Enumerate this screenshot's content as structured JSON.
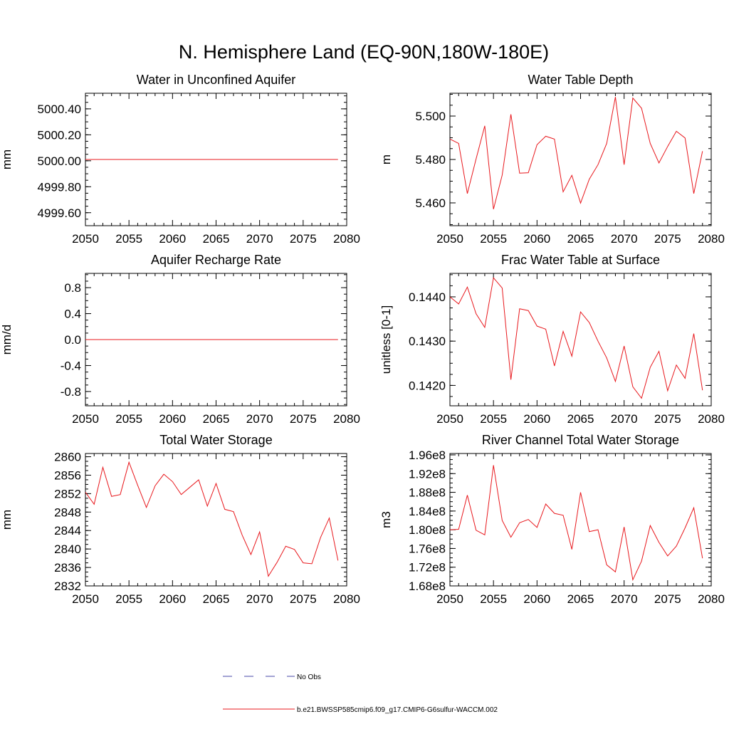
{
  "figure": {
    "title": "N. Hemisphere Land (EQ-90N,180W-180E)"
  },
  "colors": {
    "series": "#e8181d",
    "obs": "#4a4aa8",
    "axis": "#000000"
  },
  "legend": {
    "items": [
      {
        "label": "No Obs",
        "style": "dashed",
        "color": "#4a4aa8"
      },
      {
        "label": "b.e21.BWSSP585cmip6.f09_g17.CMIP6-G6sulfur-WACCM.002",
        "style": "solid",
        "color": "#e8181d"
      }
    ]
  },
  "chart_data": [
    {
      "type": "line",
      "title": "Water in Unconfined Aquifer",
      "ylabel": "mm",
      "xlim": [
        2050,
        2080
      ],
      "ylim": [
        4999.5,
        5000.52
      ],
      "xticks": [
        2050,
        2055,
        2060,
        2065,
        2070,
        2075,
        2080
      ],
      "xtick_labels": [
        "2050",
        "2055",
        "2060",
        "2065",
        "2070",
        "2075",
        "2080"
      ],
      "yticks": [
        4999.6,
        4999.8,
        5000.0,
        5000.2,
        5000.4
      ],
      "ytick_labels": [
        "4999.60",
        "4999.80",
        "5000.00",
        "5000.20",
        "5000.40"
      ],
      "minor_step": 0.05,
      "x": [
        2050,
        2051,
        2052,
        2053,
        2054,
        2055,
        2056,
        2057,
        2058,
        2059,
        2060,
        2061,
        2062,
        2063,
        2064,
        2065,
        2066,
        2067,
        2068,
        2069,
        2070,
        2071,
        2072,
        2073,
        2074,
        2075,
        2076,
        2077,
        2078,
        2079
      ],
      "y": [
        5000.01,
        5000.01,
        5000.01,
        5000.01,
        5000.01,
        5000.01,
        5000.01,
        5000.01,
        5000.01,
        5000.01,
        5000.01,
        5000.01,
        5000.01,
        5000.01,
        5000.01,
        5000.01,
        5000.01,
        5000.01,
        5000.01,
        5000.01,
        5000.01,
        5000.01,
        5000.01,
        5000.01,
        5000.01,
        5000.01,
        5000.01,
        5000.01,
        5000.01,
        5000.01
      ]
    },
    {
      "type": "line",
      "title": "Water Table Depth",
      "ylabel": "m",
      "xlim": [
        2050,
        2080
      ],
      "ylim": [
        5.4495,
        5.5105
      ],
      "xticks": [
        2050,
        2055,
        2060,
        2065,
        2070,
        2075,
        2080
      ],
      "xtick_labels": [
        "2050",
        "2055",
        "2060",
        "2065",
        "2070",
        "2075",
        "2080"
      ],
      "yticks": [
        5.46,
        5.48,
        5.5
      ],
      "ytick_labels": [
        "5.460",
        "5.480",
        "5.500"
      ],
      "minor_step": 0.005,
      "x": [
        2050,
        2051,
        2052,
        2053,
        2054,
        2055,
        2056,
        2057,
        2058,
        2059,
        2060,
        2061,
        2062,
        2063,
        2064,
        2065,
        2066,
        2067,
        2068,
        2069,
        2070,
        2071,
        2072,
        2073,
        2074,
        2075,
        2076,
        2077,
        2078,
        2079
      ],
      "y": [
        5.4894,
        5.4874,
        5.4643,
        5.4802,
        5.4955,
        5.4571,
        5.4728,
        5.5008,
        5.4737,
        5.4739,
        5.4868,
        5.4907,
        5.4894,
        5.4651,
        5.4727,
        5.4599,
        5.4709,
        5.4776,
        5.4874,
        5.5088,
        5.4776,
        5.5083,
        5.5036,
        5.4874,
        5.4784,
        5.486,
        5.493,
        5.4899,
        5.4643,
        5.4838
      ]
    },
    {
      "type": "line",
      "title": "Aquifer Recharge Rate",
      "ylabel": "mm/d",
      "xlim": [
        2050,
        2080
      ],
      "ylim": [
        -1.02,
        1.02
      ],
      "xticks": [
        2050,
        2055,
        2060,
        2065,
        2070,
        2075,
        2080
      ],
      "xtick_labels": [
        "2050",
        "2055",
        "2060",
        "2065",
        "2070",
        "2075",
        "2080"
      ],
      "yticks": [
        -0.8,
        -0.4,
        0.0,
        0.4,
        0.8
      ],
      "ytick_labels": [
        "-0.8",
        "-0.4",
        "0.0",
        "0.4",
        "0.8"
      ],
      "minor_step": 0.1,
      "x": [
        2050,
        2051,
        2052,
        2053,
        2054,
        2055,
        2056,
        2057,
        2058,
        2059,
        2060,
        2061,
        2062,
        2063,
        2064,
        2065,
        2066,
        2067,
        2068,
        2069,
        2070,
        2071,
        2072,
        2073,
        2074,
        2075,
        2076,
        2077,
        2078,
        2079
      ],
      "y": [
        0,
        0,
        0,
        0,
        0,
        0,
        0,
        0,
        0,
        0,
        0,
        0,
        0,
        0,
        0,
        0,
        0,
        0,
        0,
        0,
        0,
        0,
        0,
        0,
        0,
        0,
        0,
        0,
        0,
        0
      ]
    },
    {
      "type": "line",
      "title": "Frac Water Table at Surface",
      "ylabel": "unitless [0-1]",
      "xlim": [
        2050,
        2080
      ],
      "ylim": [
        0.14154,
        0.14453
      ],
      "xticks": [
        2050,
        2055,
        2060,
        2065,
        2070,
        2075,
        2080
      ],
      "xtick_labels": [
        "2050",
        "2055",
        "2060",
        "2065",
        "2070",
        "2075",
        "2080"
      ],
      "yticks": [
        0.142,
        0.143,
        0.144
      ],
      "ytick_labels": [
        "0.1420",
        "0.1430",
        "0.1440"
      ],
      "minor_step": 0.00025,
      "x": [
        2050,
        2051,
        2052,
        2053,
        2054,
        2055,
        2056,
        2057,
        2058,
        2059,
        2060,
        2061,
        2062,
        2063,
        2064,
        2065,
        2066,
        2067,
        2068,
        2069,
        2070,
        2071,
        2072,
        2073,
        2074,
        2075,
        2076,
        2077,
        2078,
        2079
      ],
      "y": [
        0.144,
        0.14384,
        0.14422,
        0.14362,
        0.14331,
        0.14443,
        0.1442,
        0.14213,
        0.14373,
        0.14369,
        0.14334,
        0.14327,
        0.14244,
        0.14322,
        0.14266,
        0.14366,
        0.14342,
        0.143,
        0.14262,
        0.14209,
        0.14289,
        0.14197,
        0.14171,
        0.14241,
        0.14277,
        0.14188,
        0.14246,
        0.14216,
        0.14317,
        0.14189
      ]
    },
    {
      "type": "line",
      "title": "Total Water Storage",
      "ylabel": "mm",
      "xlim": [
        2050,
        2080
      ],
      "ylim": [
        2832,
        2860.7
      ],
      "xticks": [
        2050,
        2055,
        2060,
        2065,
        2070,
        2075,
        2080
      ],
      "xtick_labels": [
        "2050",
        "2055",
        "2060",
        "2065",
        "2070",
        "2075",
        "2080"
      ],
      "yticks": [
        2832,
        2836,
        2840,
        2844,
        2848,
        2852,
        2856,
        2860
      ],
      "ytick_labels": [
        "2832",
        "2836",
        "2840",
        "2844",
        "2848",
        "2852",
        "2856",
        "2860"
      ],
      "minor_step": 1,
      "x": [
        2050,
        2051,
        2052,
        2053,
        2054,
        2055,
        2056,
        2057,
        2058,
        2059,
        2060,
        2061,
        2062,
        2063,
        2064,
        2065,
        2066,
        2067,
        2068,
        2069,
        2070,
        2071,
        2072,
        2073,
        2074,
        2075,
        2076,
        2077,
        2078,
        2079
      ],
      "y": [
        2852.3,
        2849.7,
        2857.7,
        2851.4,
        2851.8,
        2858.8,
        2853.8,
        2849.0,
        2853.7,
        2856.2,
        2854.6,
        2851.8,
        2853.4,
        2855.0,
        2849.3,
        2854.2,
        2848.6,
        2848.1,
        2843.0,
        2838.8,
        2843.7,
        2834.1,
        2837.1,
        2840.6,
        2839.9,
        2837.0,
        2836.8,
        2842.5,
        2846.7,
        2837.5
      ]
    },
    {
      "type": "line",
      "title": "River Channel Total Water Storage",
      "ylabel": "m3",
      "xlim": [
        2050,
        2080
      ],
      "ylim": [
        168000000.0,
        196300000.0
      ],
      "xticks": [
        2050,
        2055,
        2060,
        2065,
        2070,
        2075,
        2080
      ],
      "xtick_labels": [
        "2050",
        "2055",
        "2060",
        "2065",
        "2070",
        "2075",
        "2080"
      ],
      "yticks": [
        168000000.0,
        172000000.0,
        176000000.0,
        180000000.0,
        184000000.0,
        188000000.0,
        192000000.0,
        196000000.0
      ],
      "ytick_labels": [
        "1.68e8",
        "1.72e8",
        "1.76e8",
        "1.80e8",
        "1.84e8",
        "1.88e8",
        "1.92e8",
        "1.96e8"
      ],
      "minor_step": 1000000.0,
      "x": [
        2050,
        2051,
        2052,
        2053,
        2054,
        2055,
        2056,
        2057,
        2058,
        2059,
        2060,
        2061,
        2062,
        2063,
        2064,
        2065,
        2066,
        2067,
        2068,
        2069,
        2070,
        2071,
        2072,
        2073,
        2074,
        2075,
        2076,
        2077,
        2078,
        2079
      ],
      "y": [
        180000000.0,
        180100000.0,
        187400000.0,
        179900000.0,
        178900000.0,
        193800000.0,
        182000000.0,
        178400000.0,
        181500000.0,
        182200000.0,
        180500000.0,
        185500000.0,
        183500000.0,
        183100000.0,
        175800000.0,
        188000000.0,
        179600000.0,
        180000000.0,
        172500000.0,
        171000000.0,
        180600000.0,
        169300000.0,
        173300000.0,
        180900000.0,
        177300000.0,
        174400000.0,
        176500000.0,
        180400000.0,
        184700000.0,
        173900000.0
      ]
    }
  ]
}
